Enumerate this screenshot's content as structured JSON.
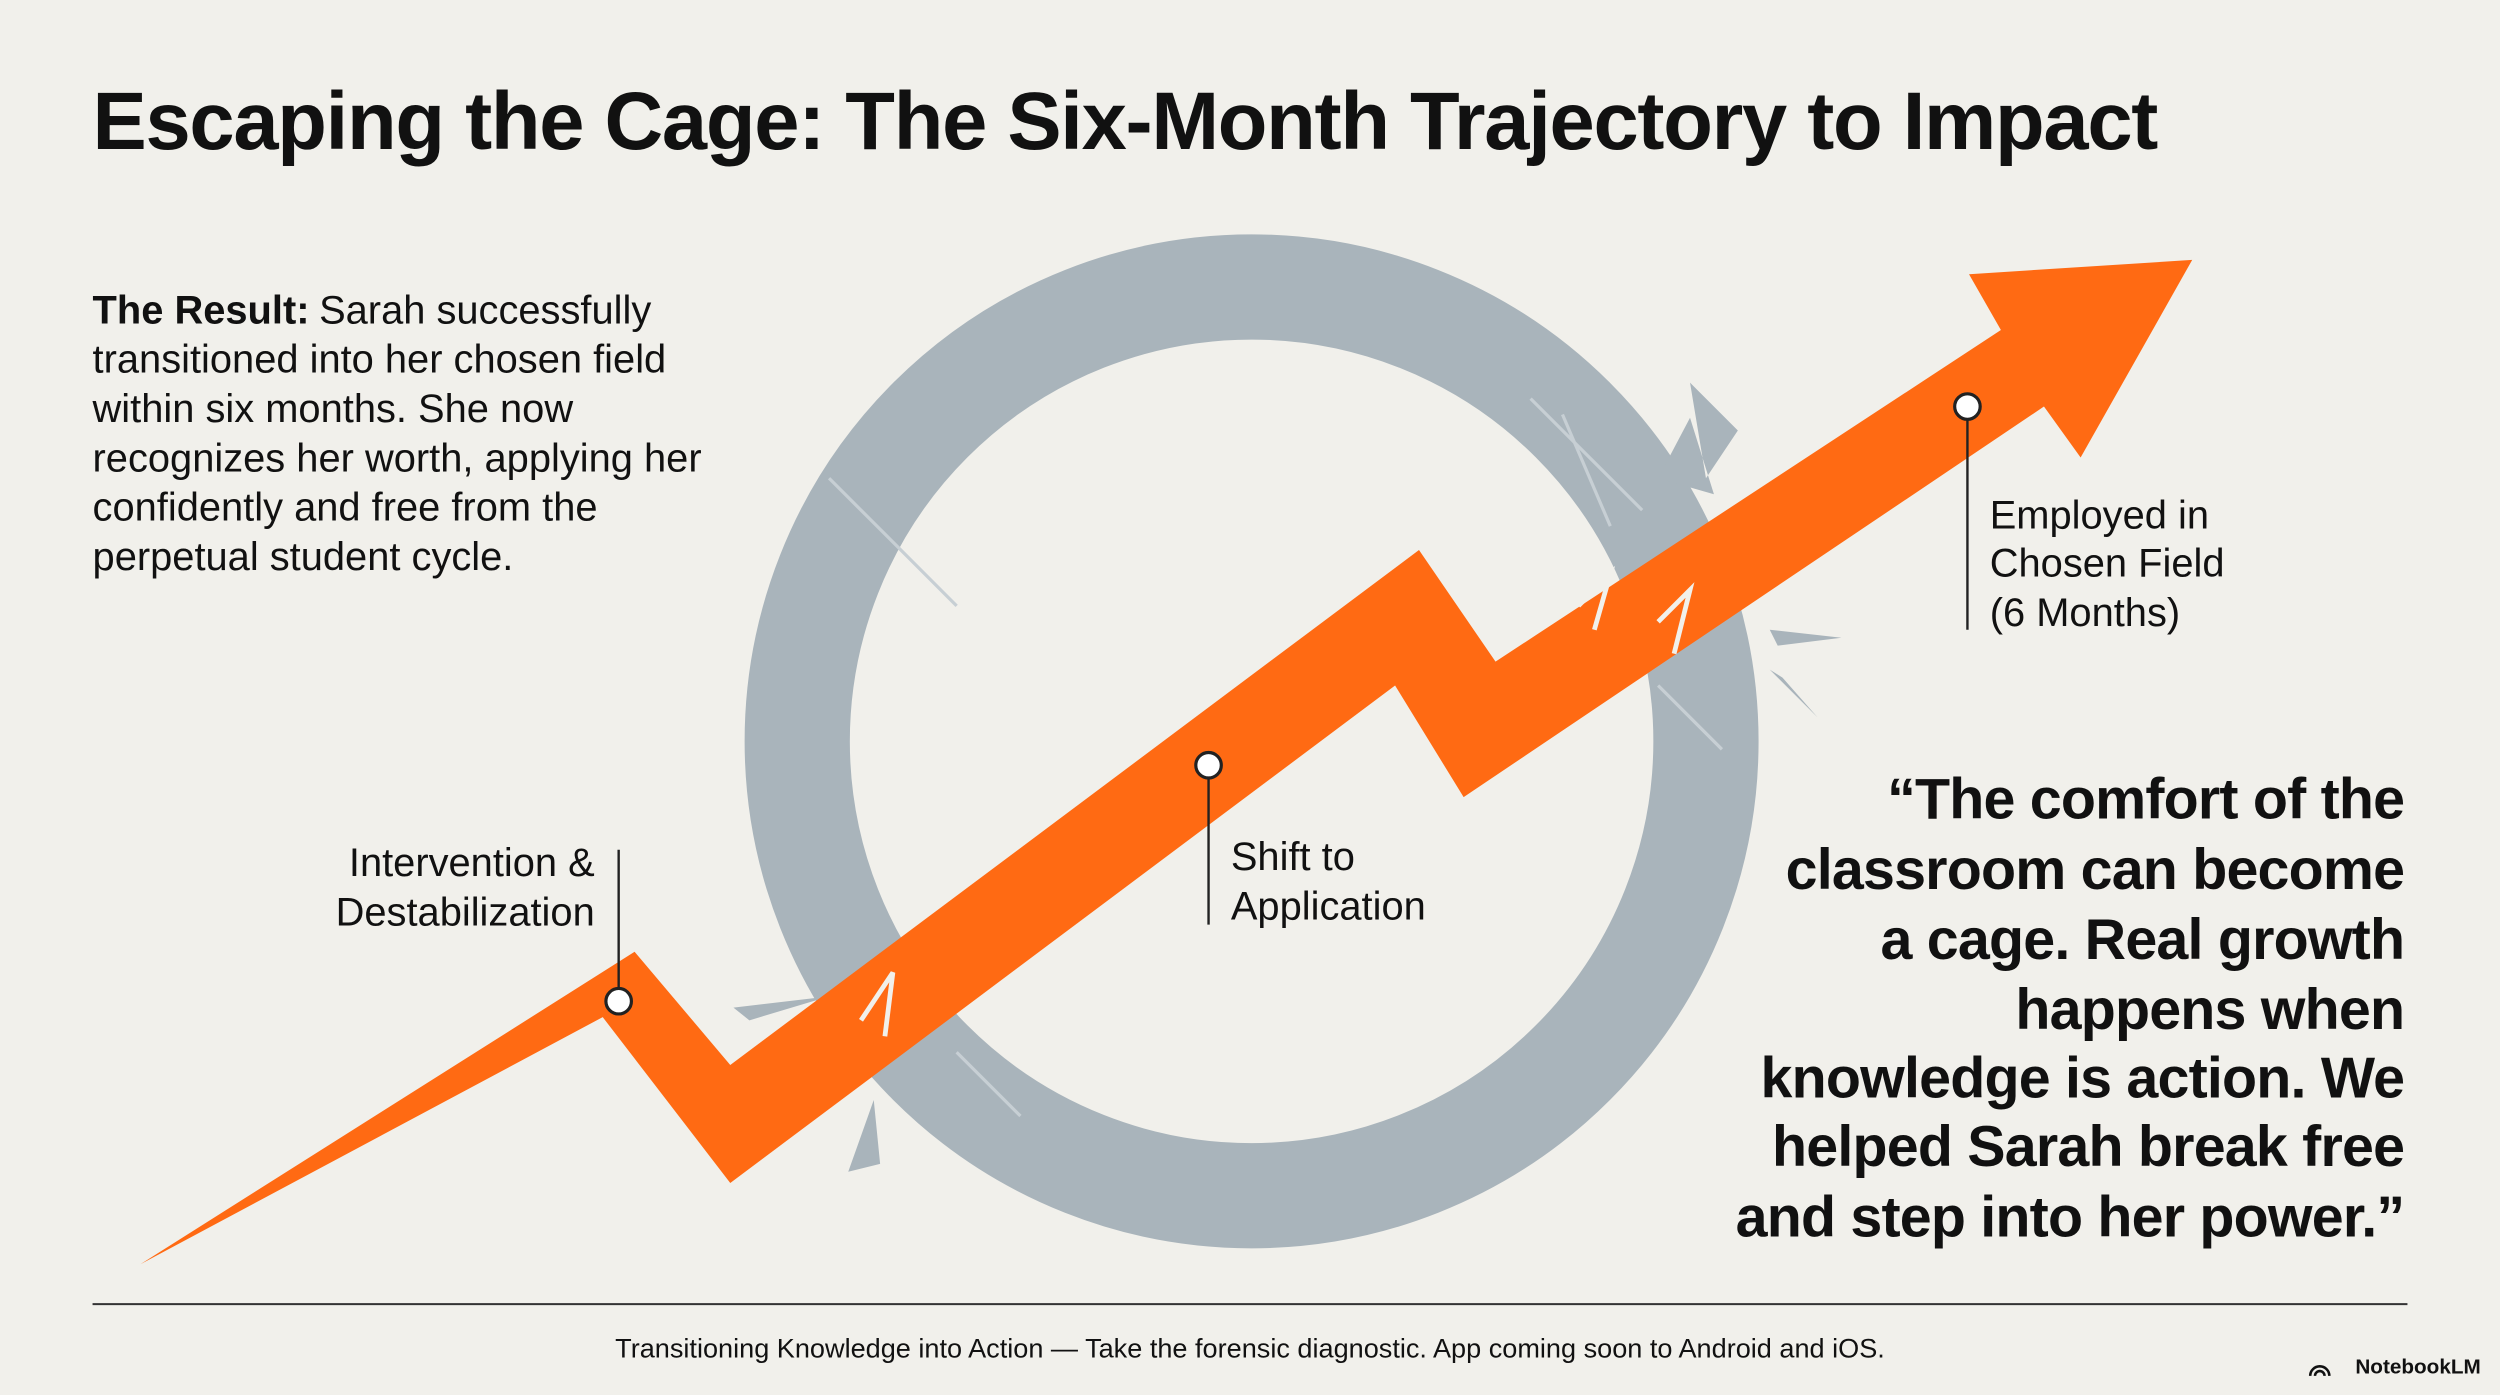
{
  "header": {
    "title": "Escaping the Cage: The Six-Month Trajectory to Impact"
  },
  "result": {
    "label": "The Result:",
    "lines": [
      "Sarah successfully",
      "transitioned into her chosen field",
      "within six months. She now",
      "recognizes her worth, applying her",
      "confidently and free from the",
      "perpetual student cycle."
    ]
  },
  "milestones": [
    {
      "lines": [
        "Intervention &",
        "Destabilization"
      ]
    },
    {
      "lines": [
        "Shift to",
        "Application"
      ]
    },
    {
      "lines": [
        "Employed in",
        "Chosen Field",
        "(6 Months)"
      ]
    }
  ],
  "quote": {
    "lines": [
      "“The comfort of the",
      "classroom can become",
      "a cage. Real growth",
      "happens when",
      "knowledge is action. We",
      "helped Sarah break free",
      "and step into her power.”"
    ]
  },
  "footer": {
    "text": "Transitioning Knowledge into Action — Take the forensic diagnostic. App coming soon to Android and iOS.",
    "brand": "NotebookLM"
  }
}
